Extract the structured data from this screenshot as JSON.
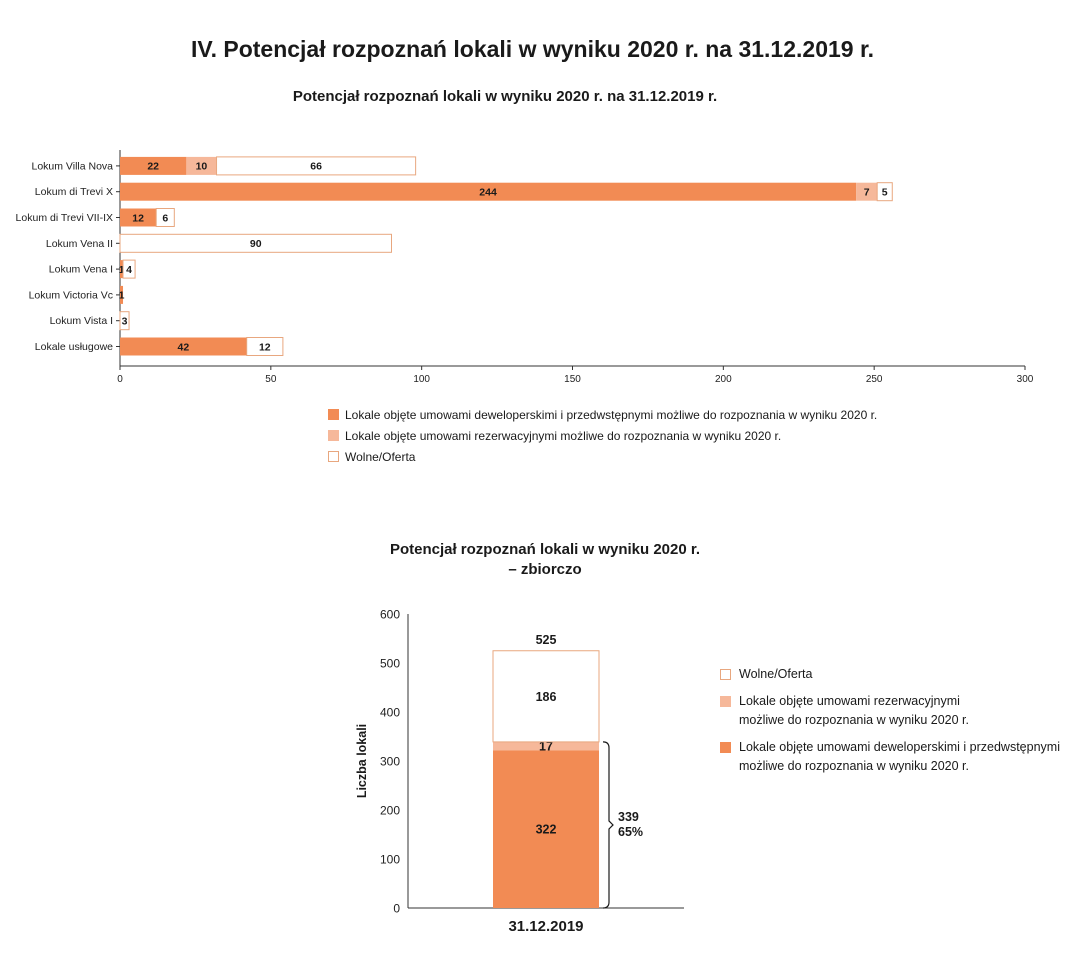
{
  "page_title": "IV. Potencjał rozpoznań lokali w wyniku 2020 r. na 31.12.2019 r.",
  "colors": {
    "developer": "#f28b54",
    "reservation": "#f6b89a",
    "free_fill": "#ffffff",
    "free_border": "#e8a77f",
    "axis": "#333333"
  },
  "chart_data": [
    {
      "type": "bar",
      "orientation": "horizontal",
      "stacked": true,
      "title": "Potencjał rozpoznań lokali w wyniku 2020 r. na 31.12.2019 r.",
      "categories": [
        "Lokum Villa Nova",
        "Lokum di Trevi X",
        "Lokum di Trevi VII-IX",
        "Lokum Vena II",
        "Lokum Vena I",
        "Lokum Victoria Vc",
        "Lokum Vista I",
        "Lokale usługowe"
      ],
      "series": [
        {
          "name": "Lokale objęte umowami deweloperskimi i przedwstępnymi możliwe do rozpoznania w wyniku 2020 r.",
          "values": [
            22,
            244,
            12,
            0,
            1,
            1,
            0,
            42
          ]
        },
        {
          "name": "Lokale objęte umowami rezerwacyjnymi możliwe do rozpoznania w wyniku 2020 r.",
          "values": [
            10,
            7,
            0,
            0,
            0,
            0,
            0,
            0
          ]
        },
        {
          "name": "Wolne/Oferta",
          "values": [
            66,
            5,
            6,
            90,
            4,
            0,
            3,
            12
          ]
        }
      ],
      "xlim": [
        0,
        300
      ],
      "xticks": [
        0,
        50,
        100,
        150,
        200,
        250,
        300
      ],
      "legend": "bottom"
    },
    {
      "type": "bar",
      "orientation": "vertical",
      "stacked": true,
      "title": "Potencjał rozpoznań lokali w wyniku 2020 r. – zbiorczo",
      "title_lines": [
        "Potencjał rozpoznań lokali w wyniku 2020 r.",
        "– zbiorczo"
      ],
      "categories": [
        "31.12.2019"
      ],
      "ylabel": "Liczba lokali",
      "ylim": [
        0,
        600
      ],
      "yticks": [
        0,
        100,
        200,
        300,
        400,
        500,
        600
      ],
      "series": [
        {
          "name": "Lokale objęte umowami deweloperskimi i przedwstępnymi możliwe do rozpoznania w wyniku 2020 r.",
          "legend_lines": [
            "Lokale objęte umowami deweloperskimi i przedwstępnymi",
            "możliwe do rozpoznania w wyniku 2020 r."
          ],
          "values": [
            322
          ]
        },
        {
          "name": "Lokale objęte umowami rezerwacyjnymi możliwe do rozpoznania w wyniku 2020 r.",
          "legend_lines": [
            "Lokale objęte umowami rezerwacyjnymi",
            "możliwe do rozpoznania w wyniku 2020 r."
          ],
          "values": [
            17
          ]
        },
        {
          "name": "Wolne/Oferta",
          "legend_lines": [
            "Wolne/Oferta"
          ],
          "values": [
            186
          ]
        }
      ],
      "total_label": "525",
      "bracket_annotation": {
        "value": "339",
        "percent": "65%"
      },
      "legend": "right"
    }
  ]
}
